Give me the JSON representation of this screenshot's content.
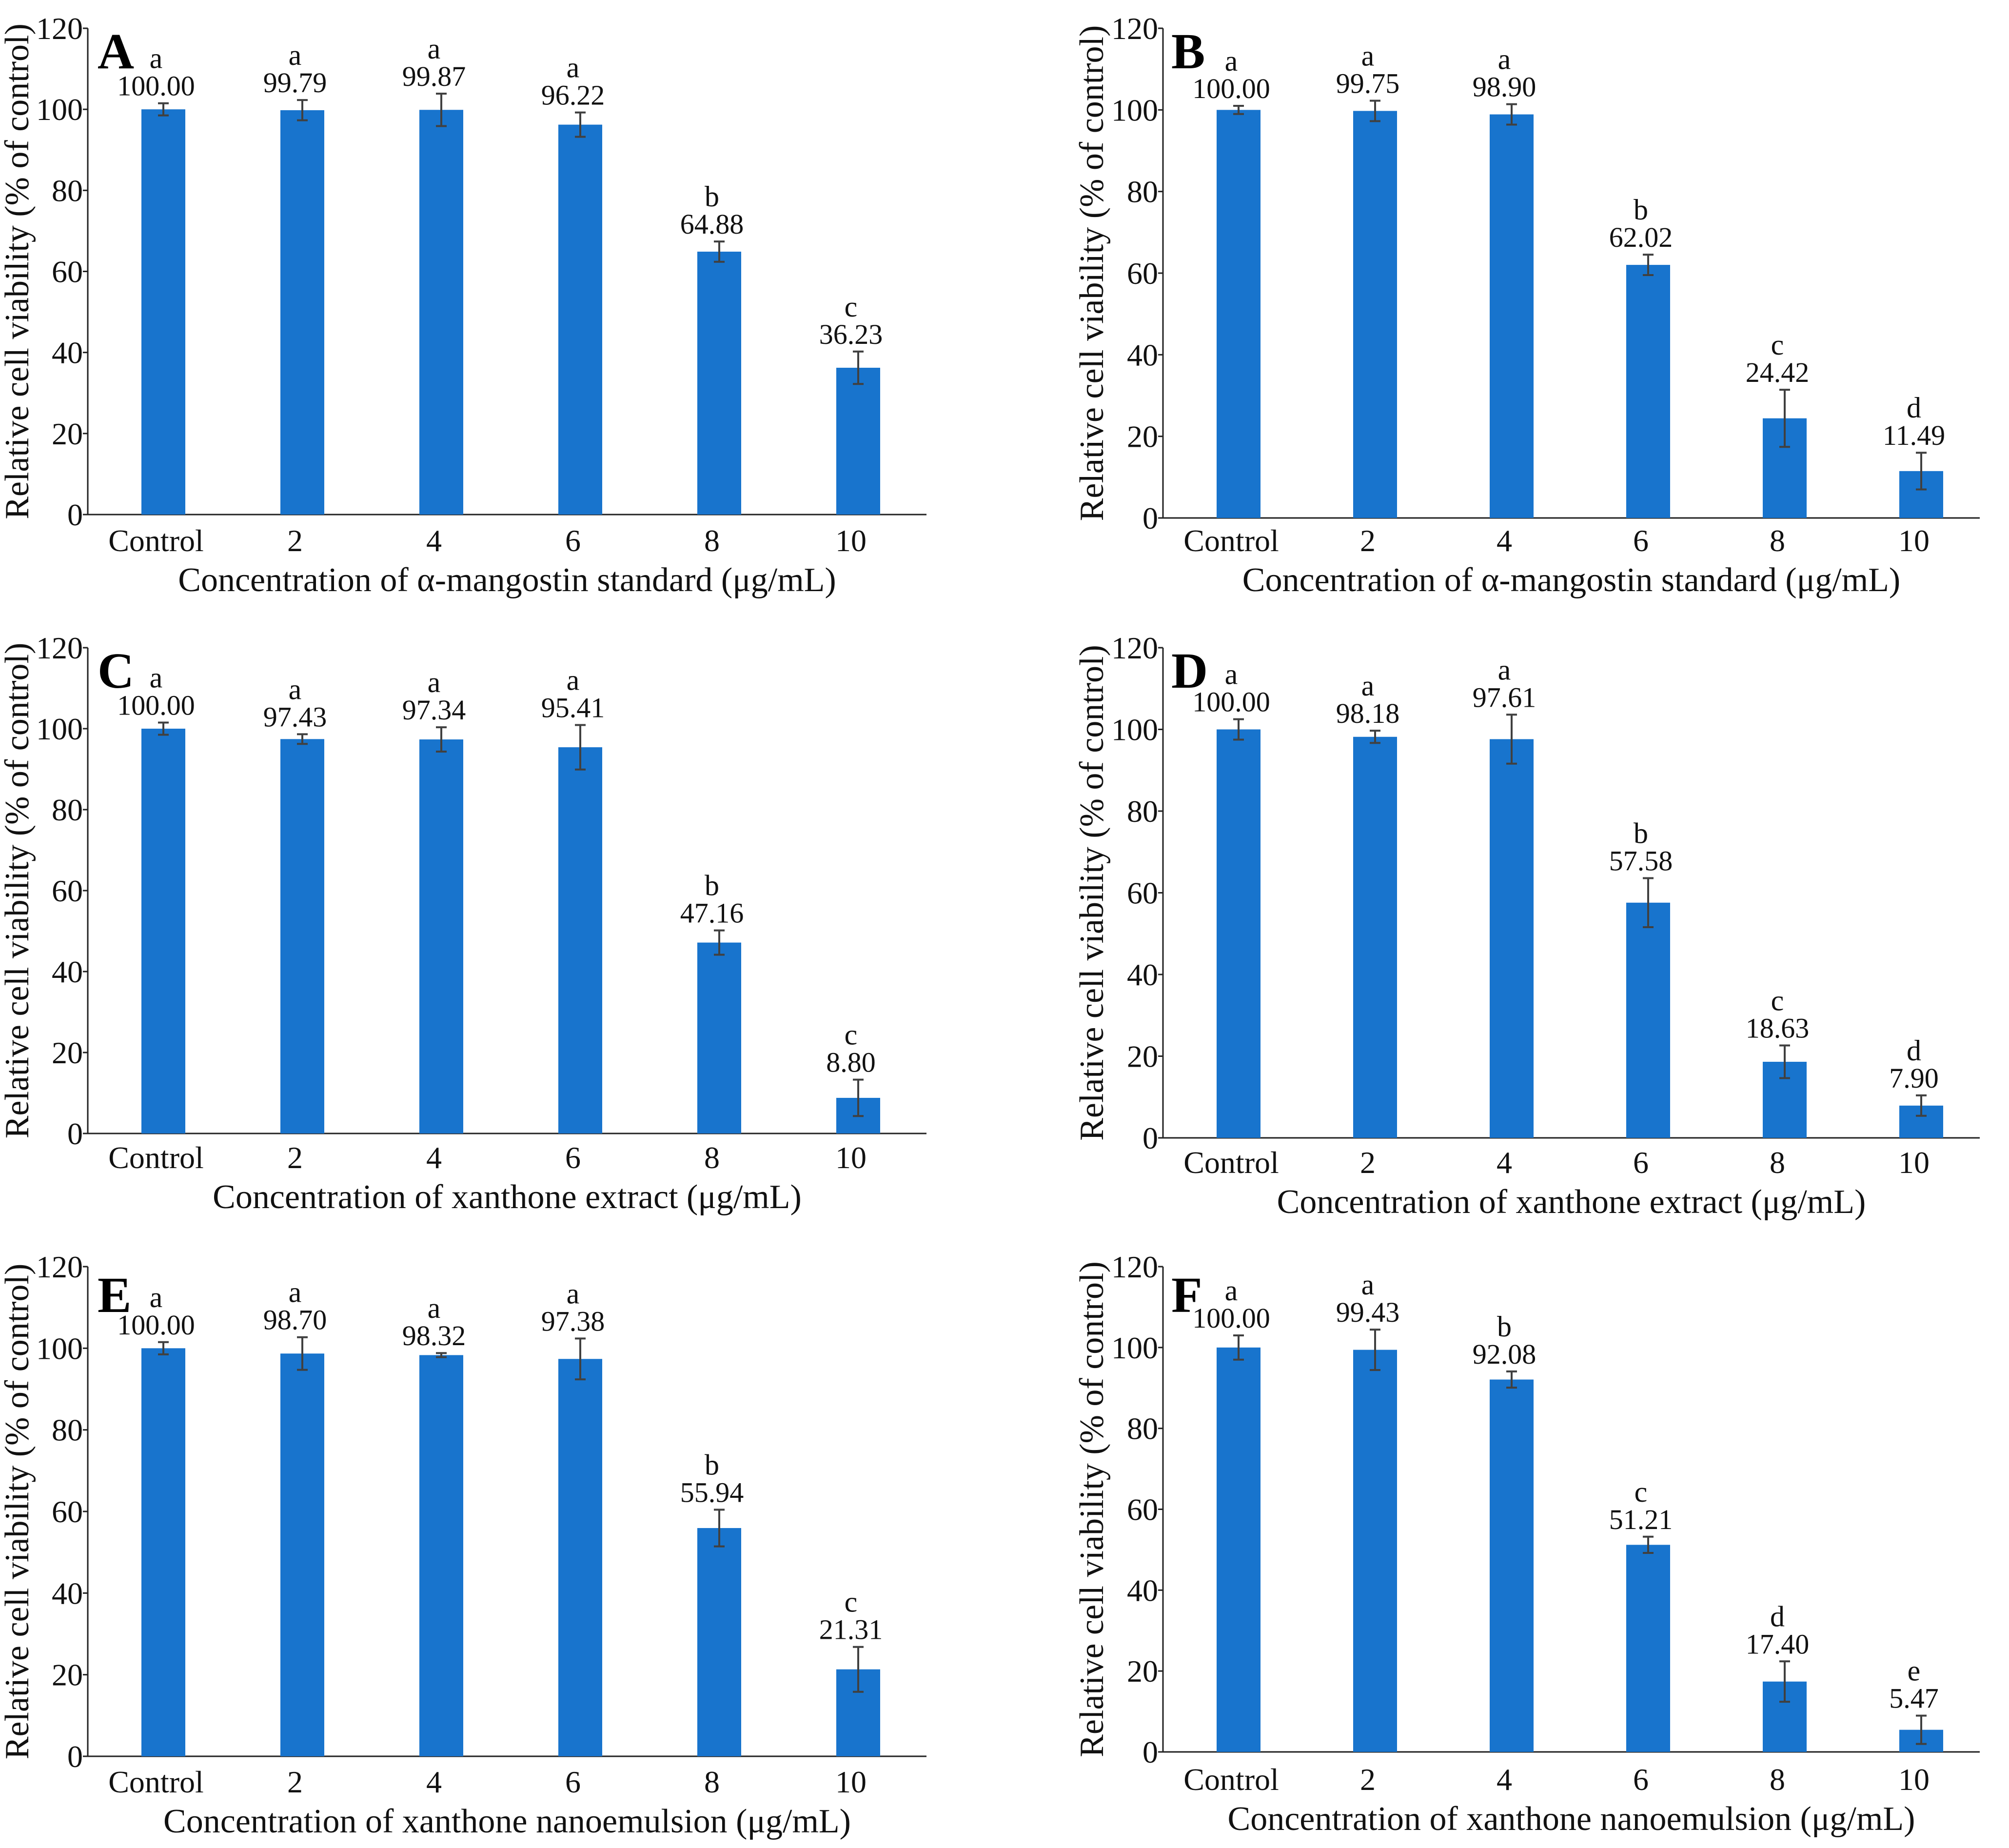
{
  "figure": {
    "bar_color": "#1874CD",
    "axis_color": "#222222",
    "error_color": "#404040"
  },
  "chart_data": [
    {
      "type": "bar",
      "panel": "A",
      "categories": [
        "Control",
        "2",
        "4",
        "6",
        "8",
        "10"
      ],
      "values": [
        100.0,
        99.79,
        99.87,
        96.22,
        64.88,
        36.23
      ],
      "value_labels": [
        "100.00",
        "99.79",
        "99.87",
        "96.22",
        "64.88",
        "36.23"
      ],
      "errors": [
        1.5,
        2.5,
        4.0,
        3.0,
        2.5,
        4.0
      ],
      "significance": [
        "a",
        "a",
        "a",
        "a",
        "b",
        "c"
      ],
      "xlabel": "Concentration of α-mangostin standard (μg/mL)",
      "ylabel": "Relative cell viability (% of control)",
      "ylim": [
        0,
        120
      ],
      "yticks": [
        "0",
        "20",
        "40",
        "60",
        "80",
        "100",
        "120"
      ],
      "grid": false
    },
    {
      "type": "bar",
      "panel": "B",
      "categories": [
        "Control",
        "2",
        "4",
        "6",
        "8",
        "10"
      ],
      "values": [
        100.0,
        99.75,
        98.9,
        62.02,
        24.42,
        11.49
      ],
      "value_labels": [
        "100.00",
        "99.75",
        "98.90",
        "62.02",
        "24.42",
        "11.49"
      ],
      "errors": [
        1.0,
        2.5,
        2.5,
        2.5,
        7.0,
        4.5
      ],
      "significance": [
        "a",
        "a",
        "a",
        "b",
        "c",
        "d"
      ],
      "xlabel": "Concentration of α-mangostin standard (μg/mL)",
      "ylabel": "Relative cell viability (% of control)",
      "ylim": [
        0,
        120
      ],
      "yticks": [
        "0",
        "20",
        "40",
        "60",
        "80",
        "100",
        "120"
      ],
      "grid": false
    },
    {
      "type": "bar",
      "panel": "C",
      "categories": [
        "Control",
        "2",
        "4",
        "6",
        "8",
        "10"
      ],
      "values": [
        100.0,
        97.43,
        97.34,
        95.41,
        47.16,
        8.8
      ],
      "value_labels": [
        "100.00",
        "97.43",
        "97.34",
        "95.41",
        "47.16",
        "8.80"
      ],
      "errors": [
        1.5,
        1.2,
        3.0,
        5.5,
        3.0,
        4.5
      ],
      "significance": [
        "a",
        "a",
        "a",
        "a",
        "b",
        "c"
      ],
      "xlabel": "Concentration of xanthone extract (μg/mL)",
      "ylabel": "Relative cell viability (% of control)",
      "ylim": [
        0,
        120
      ],
      "yticks": [
        "0",
        "20",
        "40",
        "60",
        "80",
        "100",
        "120"
      ],
      "grid": false
    },
    {
      "type": "bar",
      "panel": "D",
      "categories": [
        "Control",
        "2",
        "4",
        "6",
        "8",
        "10"
      ],
      "values": [
        100.0,
        98.18,
        97.61,
        57.58,
        18.63,
        7.9
      ],
      "value_labels": [
        "100.00",
        "98.18",
        "97.61",
        "57.58",
        "18.63",
        "7.90"
      ],
      "errors": [
        2.5,
        1.5,
        6.0,
        6.0,
        4.0,
        2.5
      ],
      "significance": [
        "a",
        "a",
        "a",
        "b",
        "c",
        "d"
      ],
      "xlabel": "Concentration of xanthone extract (μg/mL)",
      "ylabel": "Relative cell viability (% of control)",
      "ylim": [
        0,
        120
      ],
      "yticks": [
        "0",
        "20",
        "40",
        "60",
        "80",
        "100",
        "120"
      ],
      "grid": false
    },
    {
      "type": "bar",
      "panel": "E",
      "categories": [
        "Control",
        "2",
        "4",
        "6",
        "8",
        "10"
      ],
      "values": [
        100.0,
        98.7,
        98.32,
        97.38,
        55.94,
        21.31
      ],
      "value_labels": [
        "100.00",
        "98.70",
        "98.32",
        "97.38",
        "55.94",
        "21.31"
      ],
      "errors": [
        1.5,
        4.0,
        0.5,
        5.0,
        4.5,
        5.5
      ],
      "significance": [
        "a",
        "a",
        "a",
        "a",
        "b",
        "c"
      ],
      "xlabel": "Concentration of xanthone nanoemulsion (μg/mL)",
      "ylabel": "Relative cell viability (% of control)",
      "ylim": [
        0,
        120
      ],
      "yticks": [
        "0",
        "20",
        "40",
        "60",
        "80",
        "100",
        "120"
      ],
      "grid": false
    },
    {
      "type": "bar",
      "panel": "F",
      "categories": [
        "Control",
        "2",
        "4",
        "6",
        "8",
        "10"
      ],
      "values": [
        100.0,
        99.43,
        92.08,
        51.21,
        17.4,
        5.47
      ],
      "value_labels": [
        "100.00",
        "99.43",
        "92.08",
        "51.21",
        "17.40",
        "5.47"
      ],
      "errors": [
        3.0,
        5.0,
        2.0,
        2.0,
        5.0,
        3.5
      ],
      "significance": [
        "a",
        "a",
        "b",
        "c",
        "d",
        "e"
      ],
      "xlabel": "Concentration of xanthone nanoemulsion (μg/mL)",
      "ylabel": "Relative cell viability (% of control)",
      "ylim": [
        0,
        120
      ],
      "yticks": [
        "0",
        "20",
        "40",
        "60",
        "80",
        "100",
        "120"
      ],
      "grid": false
    }
  ]
}
